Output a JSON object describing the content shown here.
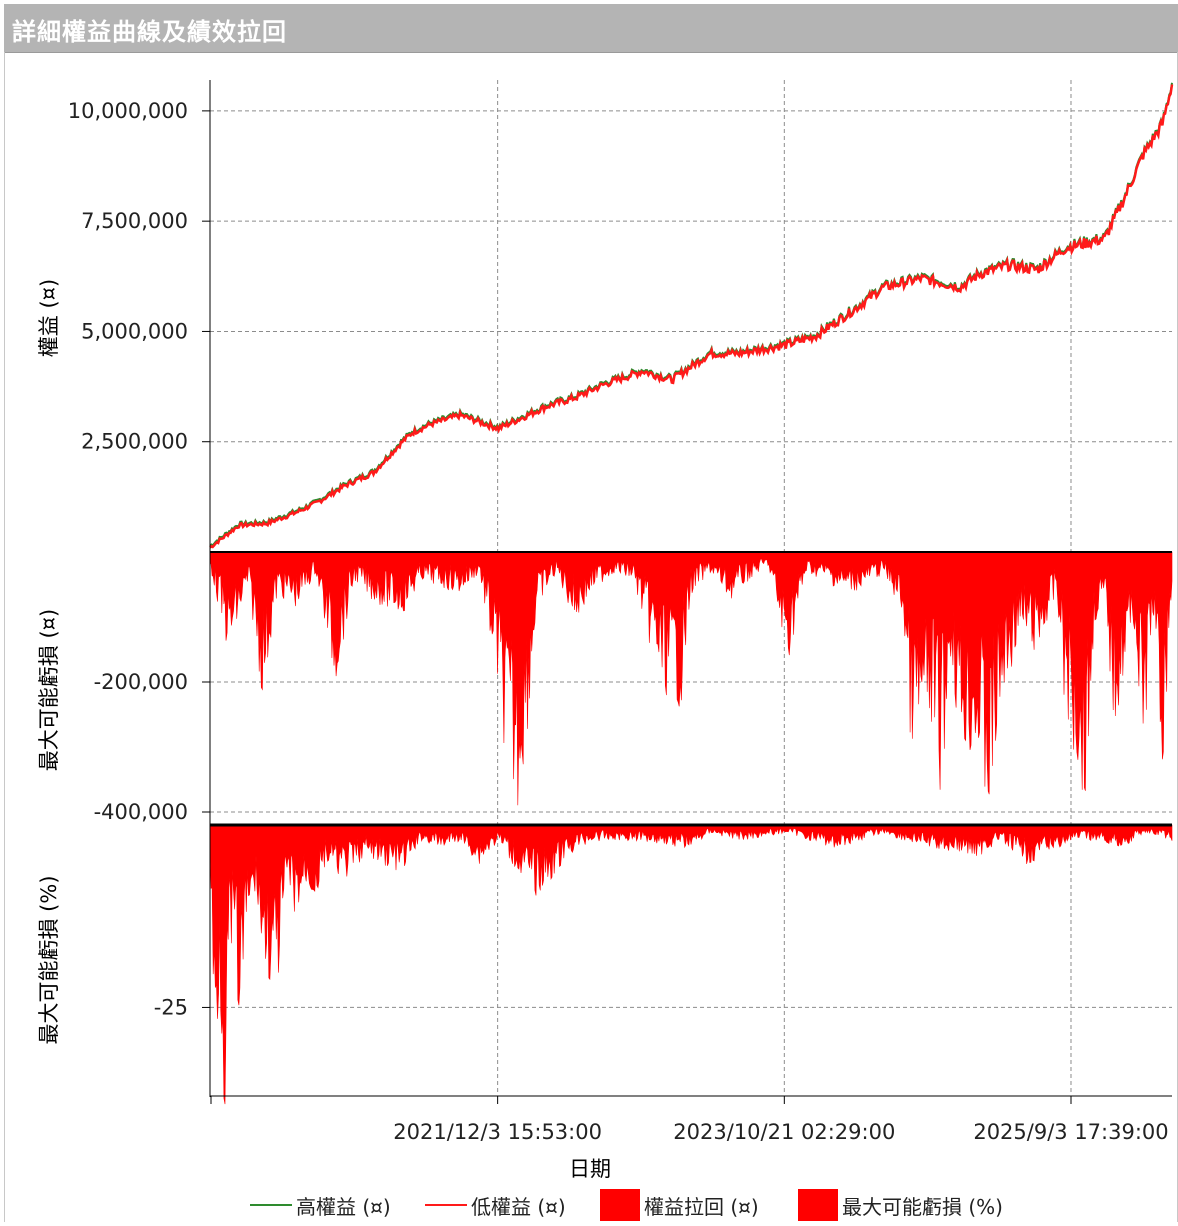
{
  "window": {
    "title": "詳細權益曲線及績效拉回"
  },
  "colors": {
    "high_equity": "#2e8b2e",
    "low_equity": "#ff1a1a",
    "drawdown": "#ff0000",
    "grid": "#8c8c8c"
  },
  "chart_data": [
    {
      "type": "line",
      "panel": "equity",
      "ylabel": "權益 (¤)",
      "ylim": [
        0,
        10700000
      ],
      "y_ticks": [
        "2,500,000",
        "5,000,000",
        "7,500,000",
        "10,000,000"
      ],
      "y_tick_values": [
        2500000,
        5000000,
        7500000,
        10000000
      ],
      "series": [
        {
          "name": "高權益 (¤)",
          "color": "#2e8b2e"
        },
        {
          "name": "低權益 (¤)",
          "color": "#ff1a1a"
        }
      ],
      "x": [
        0,
        0.03,
        0.06,
        0.09,
        0.11,
        0.14,
        0.17,
        0.2,
        0.21,
        0.23,
        0.26,
        0.3,
        0.32,
        0.35,
        0.38,
        0.41,
        0.45,
        0.48,
        0.52,
        0.55,
        0.6,
        0.63,
        0.67,
        0.7,
        0.72,
        0.74,
        0.78,
        0.8,
        0.83,
        0.86,
        0.89,
        0.91,
        0.93,
        0.95,
        0.97,
        0.99,
        1.0
      ],
      "values": [
        100000,
        600000,
        650000,
        900000,
        1100000,
        1500000,
        1800000,
        2500000,
        2700000,
        2900000,
        3100000,
        2800000,
        3000000,
        3300000,
        3500000,
        3800000,
        4100000,
        3900000,
        4500000,
        4500000,
        4700000,
        4900000,
        5500000,
        6000000,
        6100000,
        6200000,
        6000000,
        6300000,
        6500000,
        6400000,
        6900000,
        7000000,
        7100000,
        8000000,
        9000000,
        9700000,
        10600000
      ]
    },
    {
      "type": "area",
      "panel": "drawdown_amount",
      "ylabel": "最大可能虧損 (¤)",
      "ylim": [
        -420000,
        0
      ],
      "y_ticks": [
        "-200,000",
        "-400,000"
      ],
      "y_tick_values": [
        -200000,
        -400000
      ],
      "series": [
        {
          "name": "權益拉回 (¤)",
          "color": "#ff0000"
        }
      ],
      "x": [
        0,
        0.02,
        0.04,
        0.055,
        0.07,
        0.09,
        0.11,
        0.13,
        0.15,
        0.17,
        0.2,
        0.22,
        0.26,
        0.28,
        0.3,
        0.31,
        0.32,
        0.33,
        0.34,
        0.36,
        0.38,
        0.4,
        0.42,
        0.44,
        0.47,
        0.49,
        0.5,
        0.52,
        0.54,
        0.56,
        0.58,
        0.6,
        0.62,
        0.64,
        0.66,
        0.68,
        0.7,
        0.72,
        0.73,
        0.75,
        0.76,
        0.77,
        0.78,
        0.8,
        0.81,
        0.82,
        0.84,
        0.86,
        0.88,
        0.89,
        0.9,
        0.91,
        0.92,
        0.93,
        0.94,
        0.96,
        0.97,
        0.98,
        0.99,
        1.0
      ],
      "values": [
        -20000,
        -150000,
        -50000,
        -210000,
        -60000,
        -80000,
        -30000,
        -190000,
        -40000,
        -70000,
        -90000,
        -40000,
        -60000,
        -30000,
        -200000,
        -330000,
        -370000,
        -250000,
        -80000,
        -30000,
        -100000,
        -50000,
        -30000,
        -40000,
        -200000,
        -220000,
        -60000,
        -30000,
        -70000,
        -40000,
        -20000,
        -160000,
        -30000,
        -40000,
        -60000,
        -50000,
        -30000,
        -90000,
        -300000,
        -250000,
        -350000,
        -150000,
        -280000,
        -310000,
        -400000,
        -250000,
        -120000,
        -150000,
        -60000,
        -240000,
        -300000,
        -370000,
        -100000,
        -80000,
        -250000,
        -100000,
        -300000,
        -90000,
        -330000,
        -50000
      ]
    },
    {
      "type": "area",
      "panel": "drawdown_percent",
      "ylabel": "最大可能虧損 (%)",
      "ylim": [
        -37,
        0
      ],
      "y_ticks": [
        "-25"
      ],
      "y_tick_values": [
        -25
      ],
      "series": [
        {
          "name": "最大可能虧損 (%)",
          "color": "#ff0000"
        }
      ],
      "x": [
        0,
        0.005,
        0.01,
        0.015,
        0.02,
        0.025,
        0.03,
        0.04,
        0.05,
        0.055,
        0.06,
        0.065,
        0.07,
        0.08,
        0.09,
        0.1,
        0.11,
        0.12,
        0.14,
        0.16,
        0.18,
        0.2,
        0.22,
        0.24,
        0.26,
        0.28,
        0.3,
        0.32,
        0.34,
        0.36,
        0.38,
        0.4,
        0.45,
        0.5,
        0.52,
        0.55,
        0.6,
        0.65,
        0.7,
        0.72,
        0.75,
        0.8,
        0.82,
        0.85,
        0.88,
        0.9,
        0.92,
        0.95,
        0.97,
        1.0
      ],
      "values": [
        -3,
        -35,
        -20,
        -38,
        -18,
        -15,
        -28,
        -12,
        -10,
        -20,
        -18,
        -25,
        -22,
        -8,
        -12,
        -8,
        -10,
        -5,
        -7,
        -4,
        -5,
        -6,
        -2,
        -3,
        -2,
        -5,
        -2,
        -6,
        -9,
        -6,
        -3,
        -2,
        -2,
        -3,
        -1,
        -2,
        -1,
        -3,
        -1,
        -2,
        -3,
        -4,
        -2,
        -5,
        -3,
        -2,
        -2,
        -3,
        -1,
        -2
      ]
    }
  ],
  "x_axis": {
    "label": "日期",
    "ticks": [
      "2021/12/3 15:53:00",
      "2023/10/21 02:29:00",
      "2025/9/3 17:39:00"
    ],
    "tick_positions": [
      0.299,
      0.597,
      0.895
    ]
  },
  "legend": {
    "items": [
      {
        "label": "高權益 (¤)",
        "icon": "line",
        "color": "#2e8b2e"
      },
      {
        "label": "低權益 (¤)",
        "icon": "line",
        "color": "#ff1a1a"
      },
      {
        "label": "權益拉回 (¤)",
        "icon": "box",
        "color": "#ff0000"
      },
      {
        "label": "最大可能虧損 (%)",
        "icon": "box",
        "color": "#ff0000"
      }
    ]
  }
}
